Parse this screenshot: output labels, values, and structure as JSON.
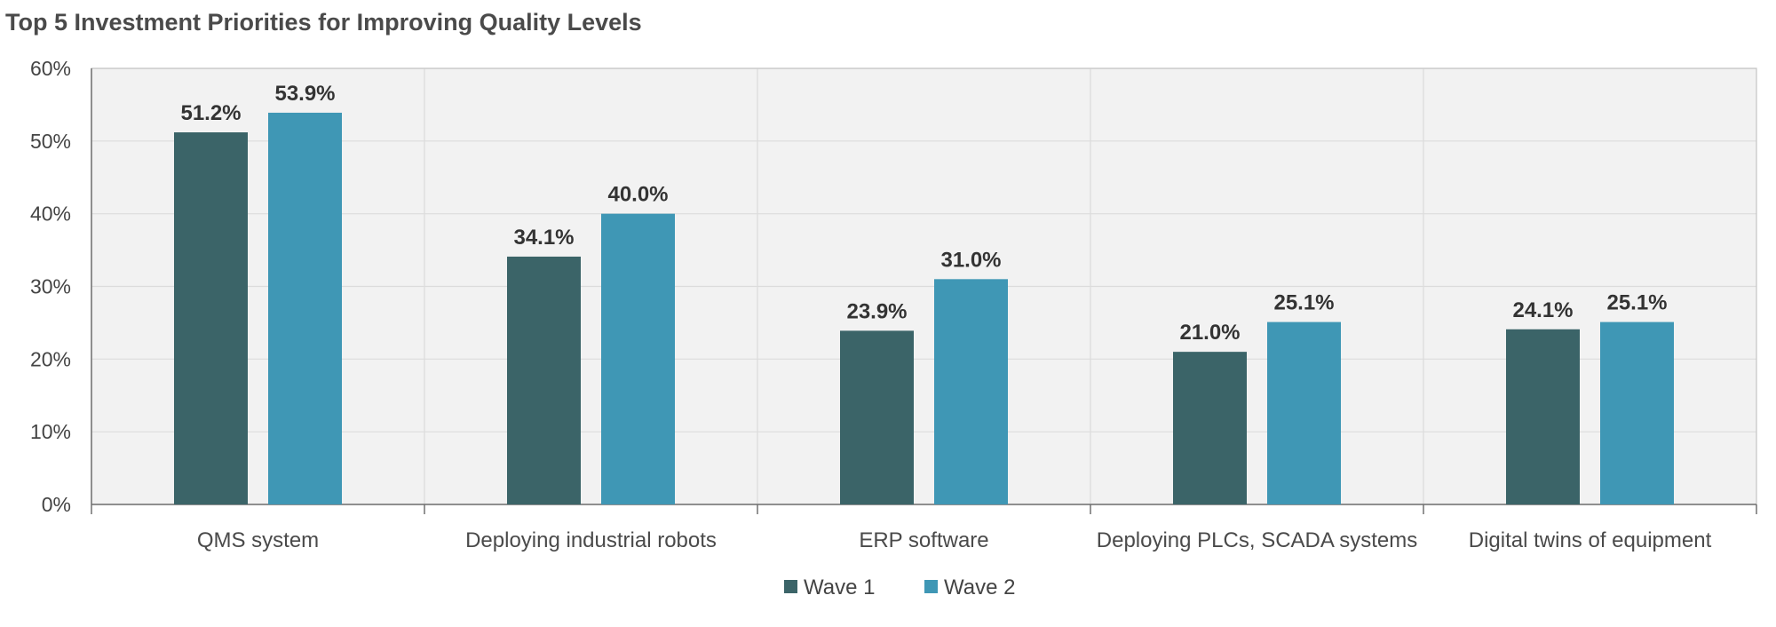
{
  "chart_data": {
    "type": "bar",
    "title": "Top 5 Investment Priorities for Improving Quality Levels",
    "categories": [
      "QMS system",
      "Deploying industrial robots",
      "ERP software",
      "Deploying PLCs, SCADA systems",
      "Digital twins of equipment"
    ],
    "series": [
      {
        "name": "Wave 1",
        "values": [
          51.2,
          34.1,
          23.9,
          21.0,
          24.1
        ],
        "labels": [
          "51.2%",
          "34.1%",
          "23.9%",
          "21.0%",
          "24.1%"
        ],
        "color": "#3b6468"
      },
      {
        "name": "Wave 2",
        "values": [
          53.9,
          40.0,
          31.0,
          25.1,
          25.1
        ],
        "labels": [
          "53.9%",
          "40.0%",
          "31.0%",
          "25.1%",
          "25.1%"
        ],
        "color": "#3f97b5"
      }
    ],
    "ylim": [
      0,
      60
    ],
    "yticks": [
      "0%",
      "10%",
      "20%",
      "30%",
      "40%",
      "50%",
      "60%"
    ],
    "grid": true,
    "legend_position": "bottom-center",
    "plot_background": "#f2f2f2",
    "grid_color": "#dcdcdc"
  }
}
